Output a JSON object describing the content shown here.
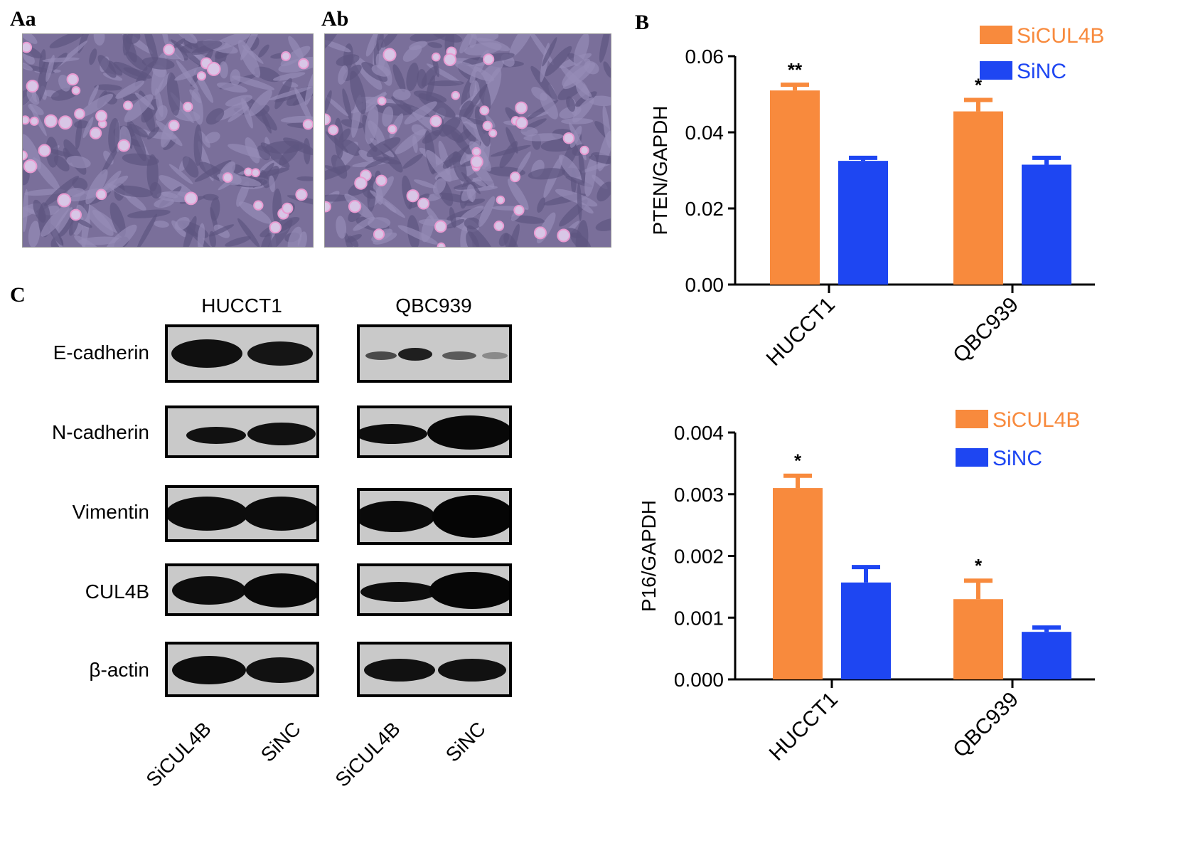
{
  "panels": {
    "aa": "Aa",
    "ab": "Ab",
    "b": "B",
    "c": "C"
  },
  "blot": {
    "groups": [
      "HUCCT1",
      "QBC939"
    ],
    "rows": [
      "E-cadherin",
      "N-cadherin",
      "Vimentin",
      "CUL4B",
      "β-actin"
    ],
    "lanes": [
      "SiCUL4B",
      "SiNC",
      "SiCUL4B",
      "SiNC"
    ]
  },
  "colors": {
    "sicul4b": "#F88A3D",
    "sinc": "#1E46F2"
  },
  "chart_data": [
    {
      "type": "bar",
      "title": "",
      "xlabel": "",
      "ylabel": "PTEN/GAPDH",
      "categories": [
        "HUCCT1",
        "QBC939"
      ],
      "ylim": [
        0,
        0.06
      ],
      "yticks": [
        "0.00",
        "0.02",
        "0.04",
        "0.06"
      ],
      "grid": false,
      "legend_position": "top-right",
      "series": [
        {
          "name": "SiCUL4B",
          "values": [
            0.051,
            0.0455
          ],
          "errors": [
            0.0015,
            0.003
          ]
        },
        {
          "name": "SiNC",
          "values": [
            0.0325,
            0.0315
          ],
          "errors": [
            0.0008,
            0.0018
          ]
        }
      ],
      "annotations": [
        {
          "category": "HUCCT1",
          "series": "SiCUL4B",
          "text": "**"
        },
        {
          "category": "QBC939",
          "series": "SiCUL4B",
          "text": "*"
        }
      ]
    },
    {
      "type": "bar",
      "title": "",
      "xlabel": "",
      "ylabel": "P16/GAPDH",
      "categories": [
        "HUCCT1",
        "QBC939"
      ],
      "ylim": [
        0,
        0.004
      ],
      "yticks": [
        "0.000",
        "0.001",
        "0.002",
        "0.003",
        "0.004"
      ],
      "grid": false,
      "legend_position": "top-right",
      "series": [
        {
          "name": "SiCUL4B",
          "values": [
            0.0031,
            0.0013
          ],
          "errors": [
            0.0002,
            0.0003
          ]
        },
        {
          "name": "SiNC",
          "values": [
            0.00157,
            0.00077
          ],
          "errors": [
            0.00025,
            7e-05
          ]
        }
      ],
      "annotations": [
        {
          "category": "HUCCT1",
          "series": "SiCUL4B",
          "text": "*"
        },
        {
          "category": "QBC939",
          "series": "SiCUL4B",
          "text": "*"
        }
      ]
    }
  ]
}
